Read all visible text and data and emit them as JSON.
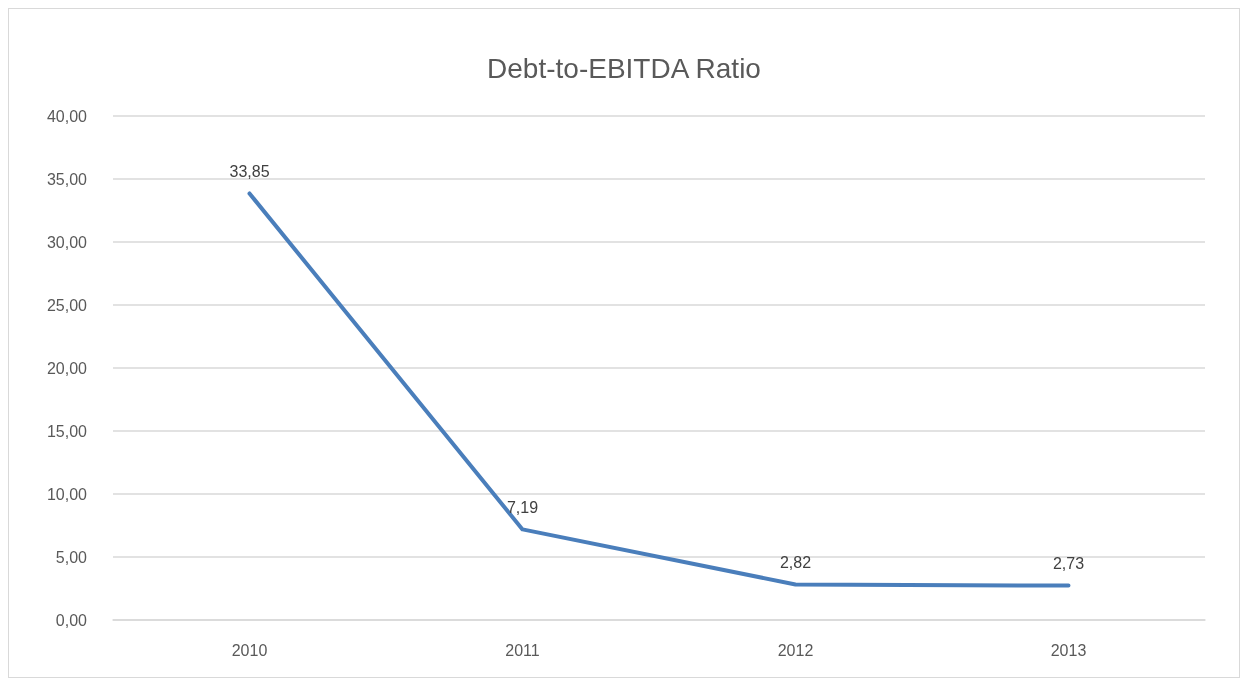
{
  "chart_data": {
    "type": "line",
    "title": "Debt-to-EBITDA Ratio",
    "categories": [
      "2010",
      "2011",
      "2012",
      "2013"
    ],
    "series": [
      {
        "color": "#4a7ebb",
        "values": [
          33.85,
          7.19,
          2.82,
          2.73
        ],
        "value_labels": [
          "33,85",
          "7,19",
          "2,82",
          "2,73"
        ]
      }
    ],
    "ylim": [
      0,
      40
    ],
    "yticks": [
      {
        "value": 0,
        "label": "0,00"
      },
      {
        "value": 5,
        "label": "5,00"
      },
      {
        "value": 10,
        "label": "10,00"
      },
      {
        "value": 15,
        "label": "15,00"
      },
      {
        "value": 20,
        "label": "20,00"
      },
      {
        "value": 25,
        "label": "25,00"
      },
      {
        "value": 30,
        "label": "30,00"
      },
      {
        "value": 35,
        "label": "35,00"
      },
      {
        "value": 40,
        "label": "40,00"
      }
    ],
    "grid": "y",
    "marker": "none",
    "line_style": "solid"
  }
}
